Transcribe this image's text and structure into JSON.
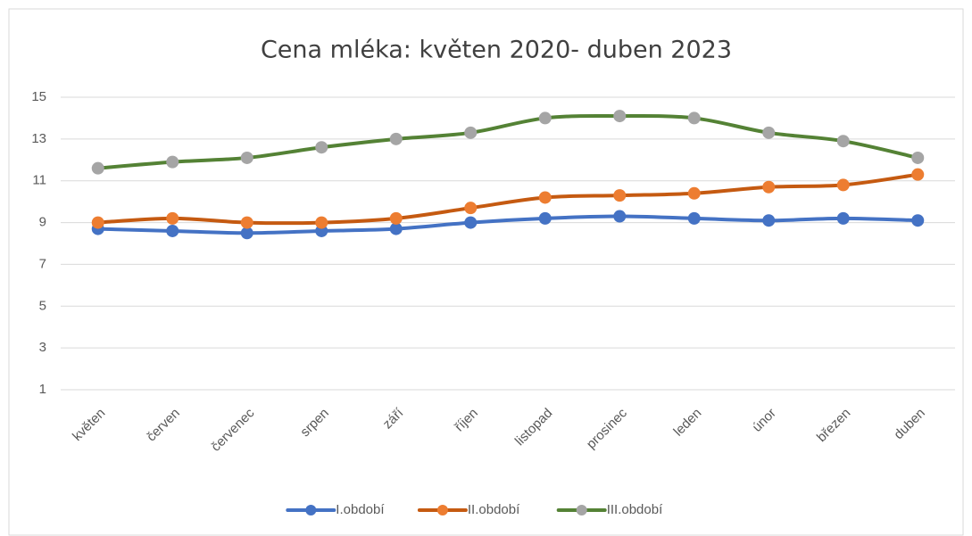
{
  "chart_data": {
    "type": "line",
    "title": "Cena mléka: květen 2020- duben 2023",
    "categories": [
      "květen",
      "červen",
      "červenec",
      "srpen",
      "září",
      "říjen",
      "listopad",
      "prosinec",
      "leden",
      "únor",
      "březen",
      "duben"
    ],
    "series": [
      {
        "name": "I.období",
        "color": "#4472c4",
        "marker_color": "#4472c4",
        "values": [
          8.7,
          8.6,
          8.5,
          8.6,
          8.7,
          9.0,
          9.2,
          9.3,
          9.2,
          9.1,
          9.2,
          9.1
        ]
      },
      {
        "name": "II.období",
        "color": "#c55a11",
        "marker_color": "#ed7d31",
        "values": [
          9.0,
          9.2,
          9.0,
          9.0,
          9.2,
          9.7,
          10.2,
          10.3,
          10.4,
          10.7,
          10.8,
          11.3
        ]
      },
      {
        "name": "III.období",
        "color": "#548235",
        "marker_color": "#a5a5a5",
        "values": [
          11.6,
          11.9,
          12.1,
          12.6,
          13.0,
          13.3,
          14.0,
          14.1,
          14.0,
          13.3,
          12.9,
          12.1
        ]
      }
    ],
    "ylim": [
      1,
      15
    ],
    "yticks": [
      1,
      3,
      5,
      7,
      9,
      11,
      13,
      15
    ],
    "grid": true,
    "smooth": true,
    "legend": "bottom"
  }
}
